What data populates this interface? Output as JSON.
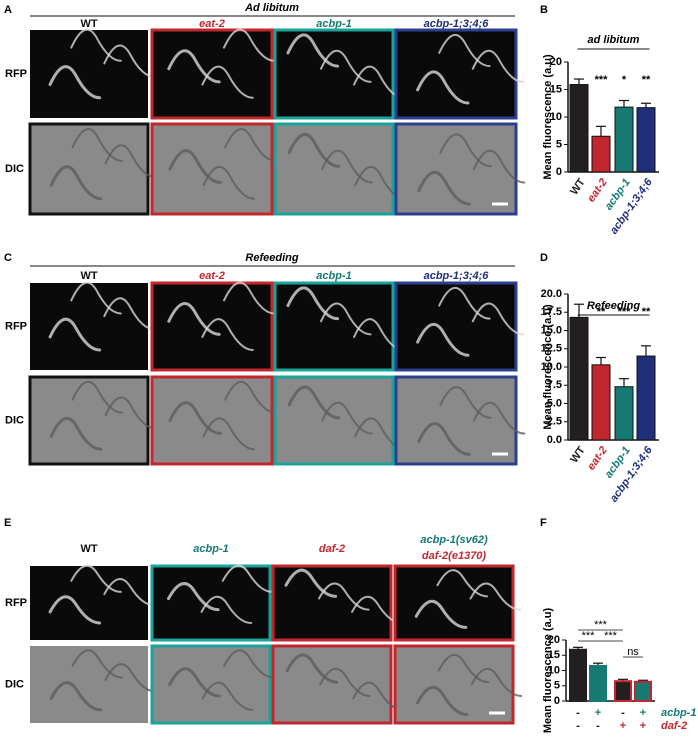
{
  "figure": {
    "panel_labels": [
      "A",
      "B",
      "C",
      "D",
      "E",
      "F"
    ],
    "A": {
      "title": "Ad libitum",
      "columns": [
        "WT",
        "eat-2",
        "acbp-1",
        "acbp-1;3;4;6"
      ],
      "rows": [
        "RFP",
        "DIC"
      ]
    },
    "C": {
      "title": "Refeeding",
      "columns": [
        "WT",
        "eat-2",
        "acbp-1",
        "acbp-1;3;4;6"
      ],
      "rows": [
        "RFP",
        "DIC"
      ]
    },
    "E": {
      "columns": [
        "WT",
        "acbp-1",
        "daf-2"
      ],
      "double_mutant": [
        "acbp-1(sv62)",
        "daf-2(e1370)"
      ],
      "rows": [
        "RFP",
        "DIC"
      ]
    }
  },
  "chart_data": [
    {
      "type": "bar",
      "title": "ad libitum",
      "y_label": "Mean fluorescence (a.u)",
      "categories": [
        "WT",
        "eat-2",
        "acbp-1",
        "acbp-1;3;4;6"
      ],
      "values": [
        15.9,
        6.5,
        11.8,
        11.7
      ],
      "errors": [
        1.0,
        1.8,
        1.2,
        0.8
      ],
      "colors": [
        "#231f20",
        "#c1272d",
        "#167a73",
        "#1f2f7a"
      ],
      "significance": [
        "***",
        "*",
        "**"
      ],
      "ylim": [
        0,
        20
      ],
      "yticks": [
        0,
        5,
        10,
        15,
        20
      ]
    },
    {
      "type": "bar",
      "title": "Refeeding",
      "y_label": "Mean fluorescence (a.u)",
      "categories": [
        "WT",
        "eat-2",
        "acbp-1",
        "acbp-1;3;4;6"
      ],
      "values": [
        16.8,
        10.3,
        7.3,
        11.5
      ],
      "errors": [
        1.8,
        1.0,
        1.1,
        1.4
      ],
      "colors": [
        "#231f20",
        "#c1272d",
        "#167a73",
        "#1f2f7a"
      ],
      "significance": [
        "**",
        "***",
        "**"
      ],
      "ylim": [
        0,
        20
      ],
      "yticks": [
        {
          "value": 0,
          "label": "0.0"
        },
        {
          "value": 2.5,
          "label": "2.5"
        },
        {
          "value": 5,
          "label": "5.0"
        },
        {
          "value": 7.5,
          "label": "7.5"
        },
        {
          "value": 10,
          "label": "10.0"
        },
        {
          "value": 12.5,
          "label": "12.5"
        },
        {
          "value": 15,
          "label": "15.0"
        },
        {
          "value": 17.5,
          "label": "17.5"
        },
        {
          "value": 20,
          "label": "20.0"
        }
      ]
    },
    {
      "type": "bar",
      "y_label": "Mean fluorescence (a.u)",
      "categories": [
        null,
        null,
        null,
        null
      ],
      "values": [
        16.8,
        11.5,
        6.5,
        6.3
      ],
      "errors": [
        0.8,
        0.9,
        0.6,
        0.5
      ],
      "colors": [
        "#231f20",
        "#167a73",
        "#231f20",
        "#167a73"
      ],
      "edge_colors": [
        "#231f20",
        "#167a73",
        "#c1272d",
        "#c1272d"
      ],
      "brackets": [
        {
          "text": "***",
          "bars": [
            0,
            2
          ]
        },
        {
          "text": "***",
          "bars": [
            0,
            1
          ]
        },
        {
          "text": "***",
          "bars": [
            1,
            2
          ]
        },
        {
          "text": "ns",
          "bars": [
            2,
            3
          ]
        }
      ],
      "genotype_rows": [
        {
          "name": "acbp-1",
          "signs": [
            "-",
            "+",
            "-",
            "+"
          ],
          "color": "#167a73"
        },
        {
          "name": "daf-2",
          "signs": [
            "-",
            "-",
            "+",
            "+"
          ],
          "color": "#c1272d"
        }
      ],
      "ylim": [
        0,
        20
      ],
      "yticks": [
        0,
        5,
        10,
        15,
        20
      ]
    }
  ]
}
